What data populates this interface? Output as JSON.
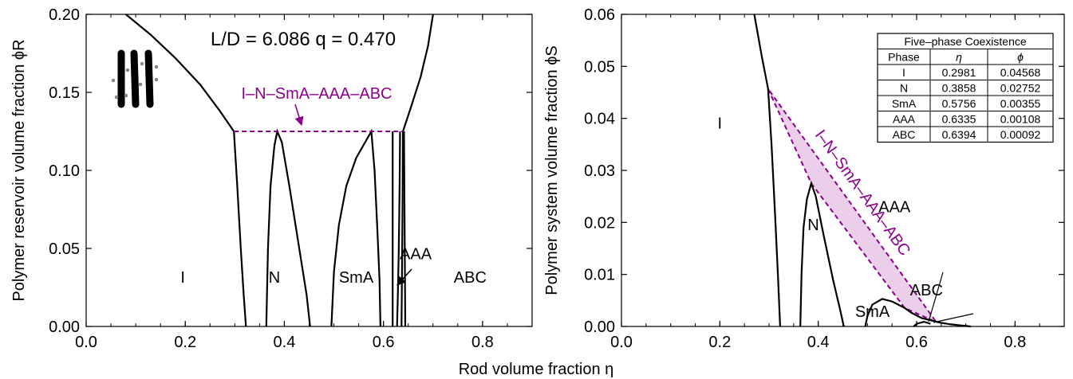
{
  "x_axis_label": "Rod volume fraction η",
  "chart_data": [
    {
      "type": "line",
      "panel": "left",
      "ylabel": "Polymer reservoir volume fraction ϕR",
      "xlim": [
        0.0,
        0.9
      ],
      "ylim": [
        0.0,
        0.2
      ],
      "xticks": [
        "0.0",
        "0.2",
        "0.4",
        "0.6",
        "0.8"
      ],
      "yticks": [
        "0.00",
        "0.05",
        "0.10",
        "0.15",
        "0.20"
      ],
      "title": "L/D = 6.086 q = 0.470",
      "coexistence_label": "I–N–SmA–AAA–ABC",
      "coexistence_phi": 0.125,
      "coexistence_eta": [
        0.2981,
        0.6394
      ],
      "phase_labels": [
        {
          "text": "I",
          "x": 0.195,
          "y": 0.028
        },
        {
          "text": "N",
          "x": 0.38,
          "y": 0.028
        },
        {
          "text": "SmA",
          "x": 0.545,
          "y": 0.028
        },
        {
          "text": "AAA",
          "x": 0.665,
          "y": 0.043
        },
        {
          "text": "ABC",
          "x": 0.775,
          "y": 0.028
        }
      ],
      "series": [
        {
          "values": [
            [
              0.08,
              0.2
            ],
            [
              0.13,
              0.187
            ],
            [
              0.18,
              0.172
            ],
            [
              0.23,
              0.155
            ],
            [
              0.27,
              0.138
            ],
            [
              0.2981,
              0.125
            ]
          ]
        },
        {
          "values": [
            [
              0.2981,
              0.125
            ],
            [
              0.305,
              0.09
            ],
            [
              0.312,
              0.05
            ],
            [
              0.318,
              0.02
            ],
            [
              0.3225,
              0.0
            ]
          ]
        },
        {
          "values": [
            [
              0.3635,
              0.0
            ],
            [
              0.367,
              0.05
            ],
            [
              0.372,
              0.09
            ],
            [
              0.38,
              0.116
            ],
            [
              0.3858,
              0.125
            ],
            [
              0.395,
              0.118
            ],
            [
              0.41,
              0.09
            ],
            [
              0.43,
              0.05
            ],
            [
              0.445,
              0.02
            ],
            [
              0.452,
              0.0
            ]
          ]
        },
        {
          "values": [
            [
              0.495,
              0.0
            ],
            [
              0.5,
              0.035
            ],
            [
              0.51,
              0.065
            ],
            [
              0.525,
              0.09
            ],
            [
              0.545,
              0.108
            ],
            [
              0.5756,
              0.125
            ],
            [
              0.582,
              0.1
            ],
            [
              0.588,
              0.06
            ],
            [
              0.592,
              0.03
            ],
            [
              0.594,
              0.0
            ]
          ]
        },
        {
          "values": [
            [
              0.6335,
              0.125
            ],
            [
              0.6325,
              0.09
            ],
            [
              0.631,
              0.05
            ],
            [
              0.629,
              0.02
            ],
            [
              0.6275,
              0.0
            ]
          ]
        },
        {
          "values": [
            [
              0.6394,
              0.125
            ],
            [
              0.6385,
              0.08
            ],
            [
              0.6375,
              0.04
            ],
            [
              0.6365,
              0.0
            ]
          ]
        },
        {
          "values": [
            [
              0.6394,
              0.125
            ],
            [
              0.655,
              0.14
            ],
            [
              0.675,
              0.16
            ],
            [
              0.69,
              0.18
            ],
            [
              0.7,
              0.2
            ]
          ]
        },
        {
          "values": [
            [
              0.6185,
              0.0
            ],
            [
              0.6186,
              0.125
            ]
          ]
        },
        {
          "values": [
            [
              0.644,
              0.0
            ],
            [
              0.6415,
              0.125
            ]
          ]
        }
      ]
    },
    {
      "type": "line",
      "panel": "right",
      "ylabel": "Polymer system volume fraction ϕS",
      "xlim": [
        0.0,
        0.9
      ],
      "ylim": [
        0.0,
        0.06
      ],
      "xticks": [
        "0.0",
        "0.2",
        "0.4",
        "0.6",
        "0.8"
      ],
      "yticks": [
        "0.00",
        "0.01",
        "0.02",
        "0.03",
        "0.04",
        "0.05",
        "0.06"
      ],
      "coexistence_label": "I–N–SmA–AAA–ABC",
      "phase_labels": [
        {
          "text": "I",
          "x": 0.2,
          "y": 0.038
        },
        {
          "text": "N",
          "x": 0.39,
          "y": 0.0185
        },
        {
          "text": "SmA",
          "x": 0.51,
          "y": 0.0018
        },
        {
          "text": "AAA",
          "x": 0.555,
          "y": 0.022
        },
        {
          "text": "ABC",
          "x": 0.62,
          "y": 0.006
        }
      ],
      "triangle": [
        [
          0.2981,
          0.04568
        ],
        [
          0.3858,
          0.02752
        ],
        [
          0.5756,
          0.00355
        ],
        [
          0.6335,
          0.00108
        ],
        [
          0.6394,
          0.00092
        ]
      ],
      "coexistence_table": {
        "caption": "Five–phase Coexistence",
        "headers": [
          "Phase",
          "η",
          "ϕ"
        ],
        "rows": [
          [
            "I",
            "0.2981",
            "0.04568"
          ],
          [
            "N",
            "0.3858",
            "0.02752"
          ],
          [
            "SmA",
            "0.5756",
            "0.00355"
          ],
          [
            "AAA",
            "0.6335",
            "0.00108"
          ],
          [
            "ABC",
            "0.6394",
            "0.00092"
          ]
        ]
      },
      "series": [
        {
          "values": [
            [
              0.27,
              0.06
            ],
            [
              0.285,
              0.052
            ],
            [
              0.2981,
              0.04568
            ],
            [
              0.305,
              0.035
            ],
            [
              0.312,
              0.022
            ],
            [
              0.318,
              0.01
            ],
            [
              0.3225,
              0.0
            ]
          ]
        },
        {
          "values": [
            [
              0.3635,
              0.0
            ],
            [
              0.366,
              0.01
            ],
            [
              0.37,
              0.019
            ],
            [
              0.377,
              0.0245
            ],
            [
              0.3858,
              0.02752
            ],
            [
              0.395,
              0.025
            ],
            [
              0.41,
              0.018
            ],
            [
              0.43,
              0.009
            ],
            [
              0.445,
              0.003
            ],
            [
              0.452,
              0.0
            ]
          ]
        },
        {
          "values": [
            [
              0.4955,
              0.0
            ],
            [
              0.5,
              0.002
            ],
            [
              0.51,
              0.0042
            ],
            [
              0.53,
              0.0053
            ],
            [
              0.55,
              0.0048
            ],
            [
              0.5756,
              0.00355
            ],
            [
              0.59,
              0.0026
            ],
            [
              0.61,
              0.0016
            ],
            [
              0.6335,
              0.00108
            ]
          ]
        },
        {
          "values": [
            [
              0.6335,
              0.00108
            ],
            [
              0.6394,
              0.00092
            ],
            [
              0.65,
              0.0007
            ],
            [
              0.67,
              0.0004
            ],
            [
              0.69,
              0.0002
            ],
            [
              0.71,
              0.0
            ]
          ]
        },
        {
          "values": [
            [
              0.594,
              0.0
            ],
            [
              0.6,
              0.0005
            ],
            [
              0.615,
              0.0009
            ],
            [
              0.628,
              0.0005
            ]
          ]
        }
      ]
    }
  ]
}
